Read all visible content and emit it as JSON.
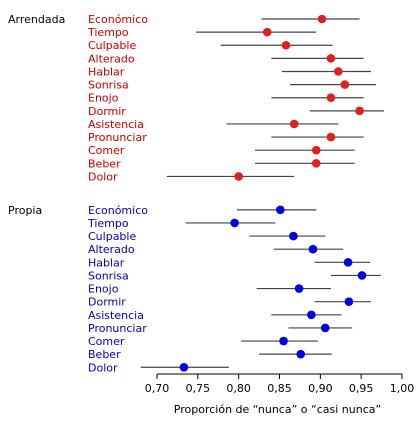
{
  "chart_data": {
    "type": "scatter",
    "subtype": "dot-with-error-bars",
    "title": "",
    "xlabel": "Proporción de “nunca” o “casi nunca”",
    "ylabel": "",
    "xlim": [
      0.7,
      1.0
    ],
    "xticks": [
      0.7,
      0.75,
      0.8,
      0.85,
      0.9,
      0.95,
      1.0
    ],
    "xtick_labels": [
      "0,70",
      "0,75",
      "0,80",
      "0,85",
      "0,90",
      "0,95",
      "1,00"
    ],
    "grid": false,
    "legend": "none",
    "groups": [
      {
        "name": "Arrendada",
        "color": "#cc0000",
        "point_color": "#e02020",
        "items": [
          {
            "label": "Económico",
            "value": 0.902,
            "lo": 0.828,
            "hi": 0.948
          },
          {
            "label": "Tiempo",
            "value": 0.835,
            "lo": 0.748,
            "hi": 0.895
          },
          {
            "label": "Culpable",
            "value": 0.858,
            "lo": 0.778,
            "hi": 0.915
          },
          {
            "label": "Alterado",
            "value": 0.913,
            "lo": 0.84,
            "hi": 0.953
          },
          {
            "label": "Hablar",
            "value": 0.922,
            "lo": 0.853,
            "hi": 0.962
          },
          {
            "label": "Sonrisa",
            "value": 0.93,
            "lo": 0.863,
            "hi": 0.968
          },
          {
            "label": "Enojo",
            "value": 0.913,
            "lo": 0.84,
            "hi": 0.953
          },
          {
            "label": "Dormir",
            "value": 0.948,
            "lo": 0.887,
            "hi": 0.978
          },
          {
            "label": "Asistencia",
            "value": 0.868,
            "lo": 0.785,
            "hi": 0.922
          },
          {
            "label": "Pronunciar",
            "value": 0.913,
            "lo": 0.84,
            "hi": 0.953
          },
          {
            "label": "Comer",
            "value": 0.895,
            "lo": 0.82,
            "hi": 0.942
          },
          {
            "label": "Beber",
            "value": 0.895,
            "lo": 0.82,
            "hi": 0.942
          },
          {
            "label": "Dolor",
            "value": 0.8,
            "lo": 0.712,
            "hi": 0.868
          }
        ]
      },
      {
        "name": "Propia",
        "color": "#0000bb",
        "point_color": "#0000dd",
        "items": [
          {
            "label": "Económico",
            "value": 0.851,
            "lo": 0.798,
            "hi": 0.895
          },
          {
            "label": "Tiempo",
            "value": 0.795,
            "lo": 0.735,
            "hi": 0.845
          },
          {
            "label": "Culpable",
            "value": 0.867,
            "lo": 0.813,
            "hi": 0.906
          },
          {
            "label": "Alterado",
            "value": 0.891,
            "lo": 0.843,
            "hi": 0.928
          },
          {
            "label": "Hablar",
            "value": 0.934,
            "lo": 0.893,
            "hi": 0.961
          },
          {
            "label": "Sonrisa",
            "value": 0.951,
            "lo": 0.913,
            "hi": 0.974
          },
          {
            "label": "Enojo",
            "value": 0.874,
            "lo": 0.822,
            "hi": 0.913
          },
          {
            "label": "Dormir",
            "value": 0.935,
            "lo": 0.893,
            "hi": 0.962
          },
          {
            "label": "Asistencia",
            "value": 0.889,
            "lo": 0.84,
            "hi": 0.926
          },
          {
            "label": "Pronunciar",
            "value": 0.906,
            "lo": 0.861,
            "hi": 0.939
          },
          {
            "label": "Comer",
            "value": 0.855,
            "lo": 0.803,
            "hi": 0.897
          },
          {
            "label": "Beber",
            "value": 0.876,
            "lo": 0.825,
            "hi": 0.914
          },
          {
            "label": "Dolor",
            "value": 0.733,
            "lo": 0.68,
            "hi": 0.788
          }
        ]
      }
    ]
  }
}
